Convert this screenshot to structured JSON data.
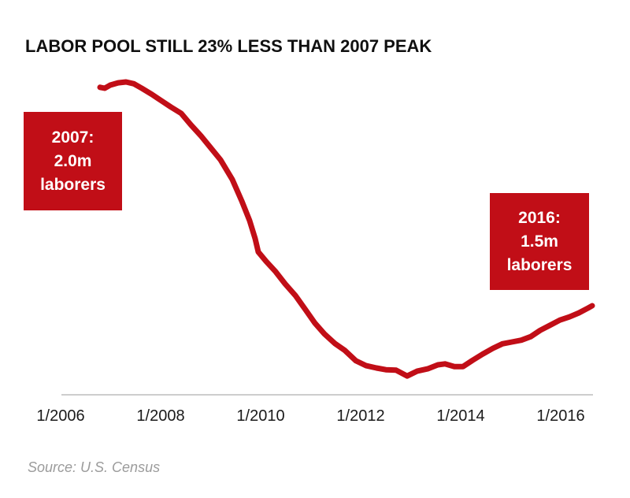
{
  "title": "LABOR POOL STILL 23% LESS THAN 2007 PEAK",
  "source": "Source: U.S. Census",
  "colors": {
    "accent_red": "#c10e17",
    "title_text": "#101010",
    "axis_line": "#cdcdcd",
    "tick_text": "#1a1a1a",
    "source_text": "#9b9b9b",
    "annotation_text": "#ffffff",
    "background": "#ffffff"
  },
  "annotations": [
    {
      "id": "peak-2007",
      "lines": [
        "2007:",
        "2.0m",
        "laborers"
      ]
    },
    {
      "id": "current-2016",
      "lines": [
        "2016:",
        "1.5m",
        "laborers"
      ]
    }
  ],
  "chart_data": {
    "type": "line",
    "title": "LABOR POOL STILL 23% LESS THAN 2007 PEAK",
    "xlabel": "",
    "ylabel": "",
    "unit": "million laborers",
    "grid": false,
    "legend": "none",
    "y_axis_visible": false,
    "x_range": [
      2006,
      2016.7
    ],
    "y_range_shown": [
      1.3,
      2.02
    ],
    "x_ticks": [
      {
        "t": 2006,
        "label": "1/2006"
      },
      {
        "t": 2008,
        "label": "1/2008"
      },
      {
        "t": 2010,
        "label": "1/2010"
      },
      {
        "t": 2012,
        "label": "1/2012"
      },
      {
        "t": 2014,
        "label": "1/2014"
      },
      {
        "t": 2016,
        "label": "1/2016"
      }
    ],
    "key_values": {
      "peak_2007": 2.0,
      "value_2016": 1.5,
      "pct_below_peak": "23%"
    },
    "series": [
      {
        "name": "labor-pool",
        "color": "#c10e17",
        "points": [
          [
            2006.787,
            1.988
          ],
          [
            2006.882,
            1.986
          ],
          [
            2006.992,
            1.993
          ],
          [
            2007.15,
            1.998
          ],
          [
            2007.307,
            2.0
          ],
          [
            2007.465,
            1.996
          ],
          [
            2007.622,
            1.986
          ],
          [
            2007.827,
            1.972
          ],
          [
            2008.016,
            1.958
          ],
          [
            2008.205,
            1.944
          ],
          [
            2008.409,
            1.93
          ],
          [
            2008.598,
            1.905
          ],
          [
            2008.803,
            1.88
          ],
          [
            2008.992,
            1.854
          ],
          [
            2009.197,
            1.826
          ],
          [
            2009.433,
            1.782
          ],
          [
            2009.622,
            1.734
          ],
          [
            2009.78,
            1.69
          ],
          [
            2009.89,
            1.65
          ],
          [
            2009.953,
            1.62
          ],
          [
            2010.11,
            1.599
          ],
          [
            2010.299,
            1.576
          ],
          [
            2010.488,
            1.549
          ],
          [
            2010.693,
            1.523
          ],
          [
            2010.898,
            1.491
          ],
          [
            2011.087,
            1.461
          ],
          [
            2011.276,
            1.437
          ],
          [
            2011.48,
            1.416
          ],
          [
            2011.685,
            1.4
          ],
          [
            2011.906,
            1.377
          ],
          [
            2012.11,
            1.366
          ],
          [
            2012.315,
            1.361
          ],
          [
            2012.504,
            1.357
          ],
          [
            2012.709,
            1.356
          ],
          [
            2012.929,
            1.343
          ],
          [
            2013.134,
            1.354
          ],
          [
            2013.339,
            1.359
          ],
          [
            2013.543,
            1.368
          ],
          [
            2013.685,
            1.37
          ],
          [
            2013.874,
            1.364
          ],
          [
            2014.047,
            1.364
          ],
          [
            2014.236,
            1.378
          ],
          [
            2014.441,
            1.392
          ],
          [
            2014.646,
            1.405
          ],
          [
            2014.835,
            1.415
          ],
          [
            2015.024,
            1.419
          ],
          [
            2015.213,
            1.423
          ],
          [
            2015.402,
            1.431
          ],
          [
            2015.591,
            1.445
          ],
          [
            2015.78,
            1.456
          ],
          [
            2015.984,
            1.468
          ],
          [
            2016.173,
            1.475
          ],
          [
            2016.362,
            1.484
          ],
          [
            2016.551,
            1.495
          ],
          [
            2016.63,
            1.5
          ]
        ]
      }
    ]
  }
}
